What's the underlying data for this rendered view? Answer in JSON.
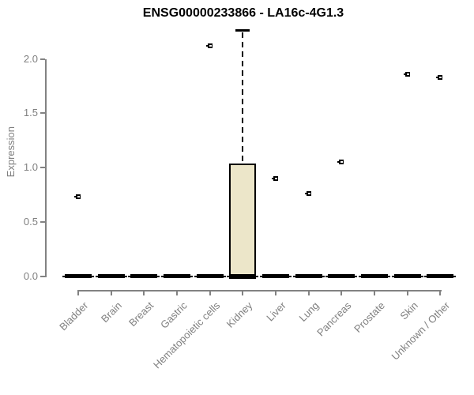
{
  "chart_data": {
    "type": "boxplot",
    "title": "ENSG00000233866 - LA16c-4G1.3",
    "ylabel": "Expression",
    "xlabel": "",
    "ylim": [
      0,
      2.3
    ],
    "grid": false,
    "legend": false,
    "yticks": {
      "values": [
        0,
        0.5,
        1,
        1.5,
        2
      ],
      "labels": [
        "0.0",
        "0.5",
        "1.0",
        "1.5",
        "2.0"
      ]
    },
    "categories": [
      "Bladder",
      "Brain",
      "Breast",
      "Gastric",
      "Hematopoietic cells",
      "Kidney",
      "Liver",
      "Lung",
      "Pancreas",
      "Prostate",
      "Skin",
      "Unknown / Other"
    ],
    "boxes": [
      {
        "category": "Bladder",
        "whisker_low": 0,
        "q1": 0,
        "median": 0,
        "q3": 0,
        "whisker_high": 0,
        "outliers": [
          0.73
        ]
      },
      {
        "category": "Brain",
        "whisker_low": 0,
        "q1": 0,
        "median": 0,
        "q3": 0,
        "whisker_high": 0,
        "outliers": []
      },
      {
        "category": "Breast",
        "whisker_low": 0,
        "q1": 0,
        "median": 0,
        "q3": 0,
        "whisker_high": 0,
        "outliers": []
      },
      {
        "category": "Gastric",
        "whisker_low": 0,
        "q1": 0,
        "median": 0,
        "q3": 0,
        "whisker_high": 0,
        "outliers": []
      },
      {
        "category": "Hematopoietic cells",
        "whisker_low": 0,
        "q1": 0,
        "median": 0,
        "q3": 0,
        "whisker_high": 0,
        "outliers": [
          2.12
        ]
      },
      {
        "category": "Kidney",
        "whisker_low": 0,
        "q1": 0,
        "median": 0,
        "q3": 1.04,
        "whisker_high": 2.26,
        "outliers": []
      },
      {
        "category": "Liver",
        "whisker_low": 0,
        "q1": 0,
        "median": 0,
        "q3": 0,
        "whisker_high": 0,
        "outliers": [
          0.9
        ]
      },
      {
        "category": "Lung",
        "whisker_low": 0,
        "q1": 0,
        "median": 0,
        "q3": 0,
        "whisker_high": 0,
        "outliers": [
          0.76
        ]
      },
      {
        "category": "Pancreas",
        "whisker_low": 0,
        "q1": 0,
        "median": 0,
        "q3": 0,
        "whisker_high": 0,
        "outliers": [
          1.05
        ]
      },
      {
        "category": "Prostate",
        "whisker_low": 0,
        "q1": 0,
        "median": 0,
        "q3": 0,
        "whisker_high": 0,
        "outliers": []
      },
      {
        "category": "Skin",
        "whisker_low": 0,
        "q1": 0,
        "median": 0,
        "q3": 0,
        "whisker_high": 0,
        "outliers": [
          1.86
        ]
      },
      {
        "category": "Unknown / Other",
        "whisker_low": 0,
        "q1": 0,
        "median": 0,
        "q3": 0,
        "whisker_high": 0,
        "outliers": [
          1.83
        ]
      }
    ],
    "colors": {
      "box_fill": "#ece6c9",
      "box_border": "#000000",
      "outlier": "#000000",
      "axis": "#828282",
      "tick_text": "#808080",
      "title_text": "#000000",
      "background": "#ffffff"
    }
  }
}
